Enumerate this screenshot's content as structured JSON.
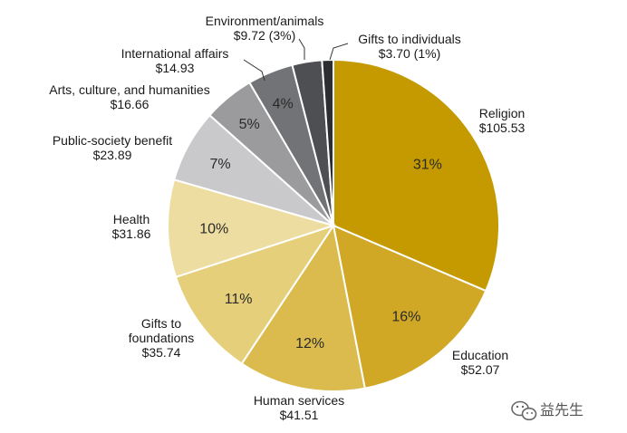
{
  "chart_data": {
    "type": "pie",
    "start": "top",
    "direction": "clockwise",
    "slices": [
      {
        "category": "Religion",
        "amount": "$105.53",
        "percent_label": "31%",
        "value": 105.53,
        "color": "#c49a00",
        "text_color": "#2a2a2a"
      },
      {
        "category": "Education",
        "amount": "$52.07",
        "percent_label": "16%",
        "value": 52.07,
        "color": "#d1a826",
        "text_color": "#2a2a2a"
      },
      {
        "category": "Human services",
        "amount": "$41.51",
        "percent_label": "12%",
        "value": 41.51,
        "color": "#dbbb4d",
        "text_color": "#2a2a2a"
      },
      {
        "category": "Gifts to\nfoundations",
        "amount": "$35.74",
        "percent_label": "11%",
        "value": 35.74,
        "color": "#e6cf7a",
        "text_color": "#2a2a2a"
      },
      {
        "category": "Health",
        "amount": "$31.86",
        "percent_label": "10%",
        "value": 31.86,
        "color": "#eedda0",
        "text_color": "#2a2a2a"
      },
      {
        "category": "Public-society benefit",
        "amount": "$23.89",
        "percent_label": "7%",
        "value": 23.89,
        "color": "#c9c9cb",
        "text_color": "#2a2a2a"
      },
      {
        "category": "Arts, culture, and humanities",
        "amount": "$16.66",
        "percent_label": "5%",
        "value": 16.66,
        "color": "#9b9b9e",
        "text_color": "#1a1a1a"
      },
      {
        "category": "International affairs",
        "amount": "$14.93",
        "percent_label": "4%",
        "value": 14.93,
        "color": "#727376",
        "text_color": "#111111"
      },
      {
        "category": "Environment/animals",
        "amount": "$9.72 (3%)",
        "percent_label": "",
        "value": 9.72,
        "color": "#4e4f53",
        "text_color": "#ffffff"
      },
      {
        "category": "Gifts to individuals",
        "amount": "$3.70 (1%)",
        "percent_label": "",
        "value": 3.7,
        "color": "#2c2d31",
        "text_color": "#ffffff"
      }
    ]
  },
  "watermark": {
    "text": "益先生",
    "icon": "wechat-icon"
  }
}
